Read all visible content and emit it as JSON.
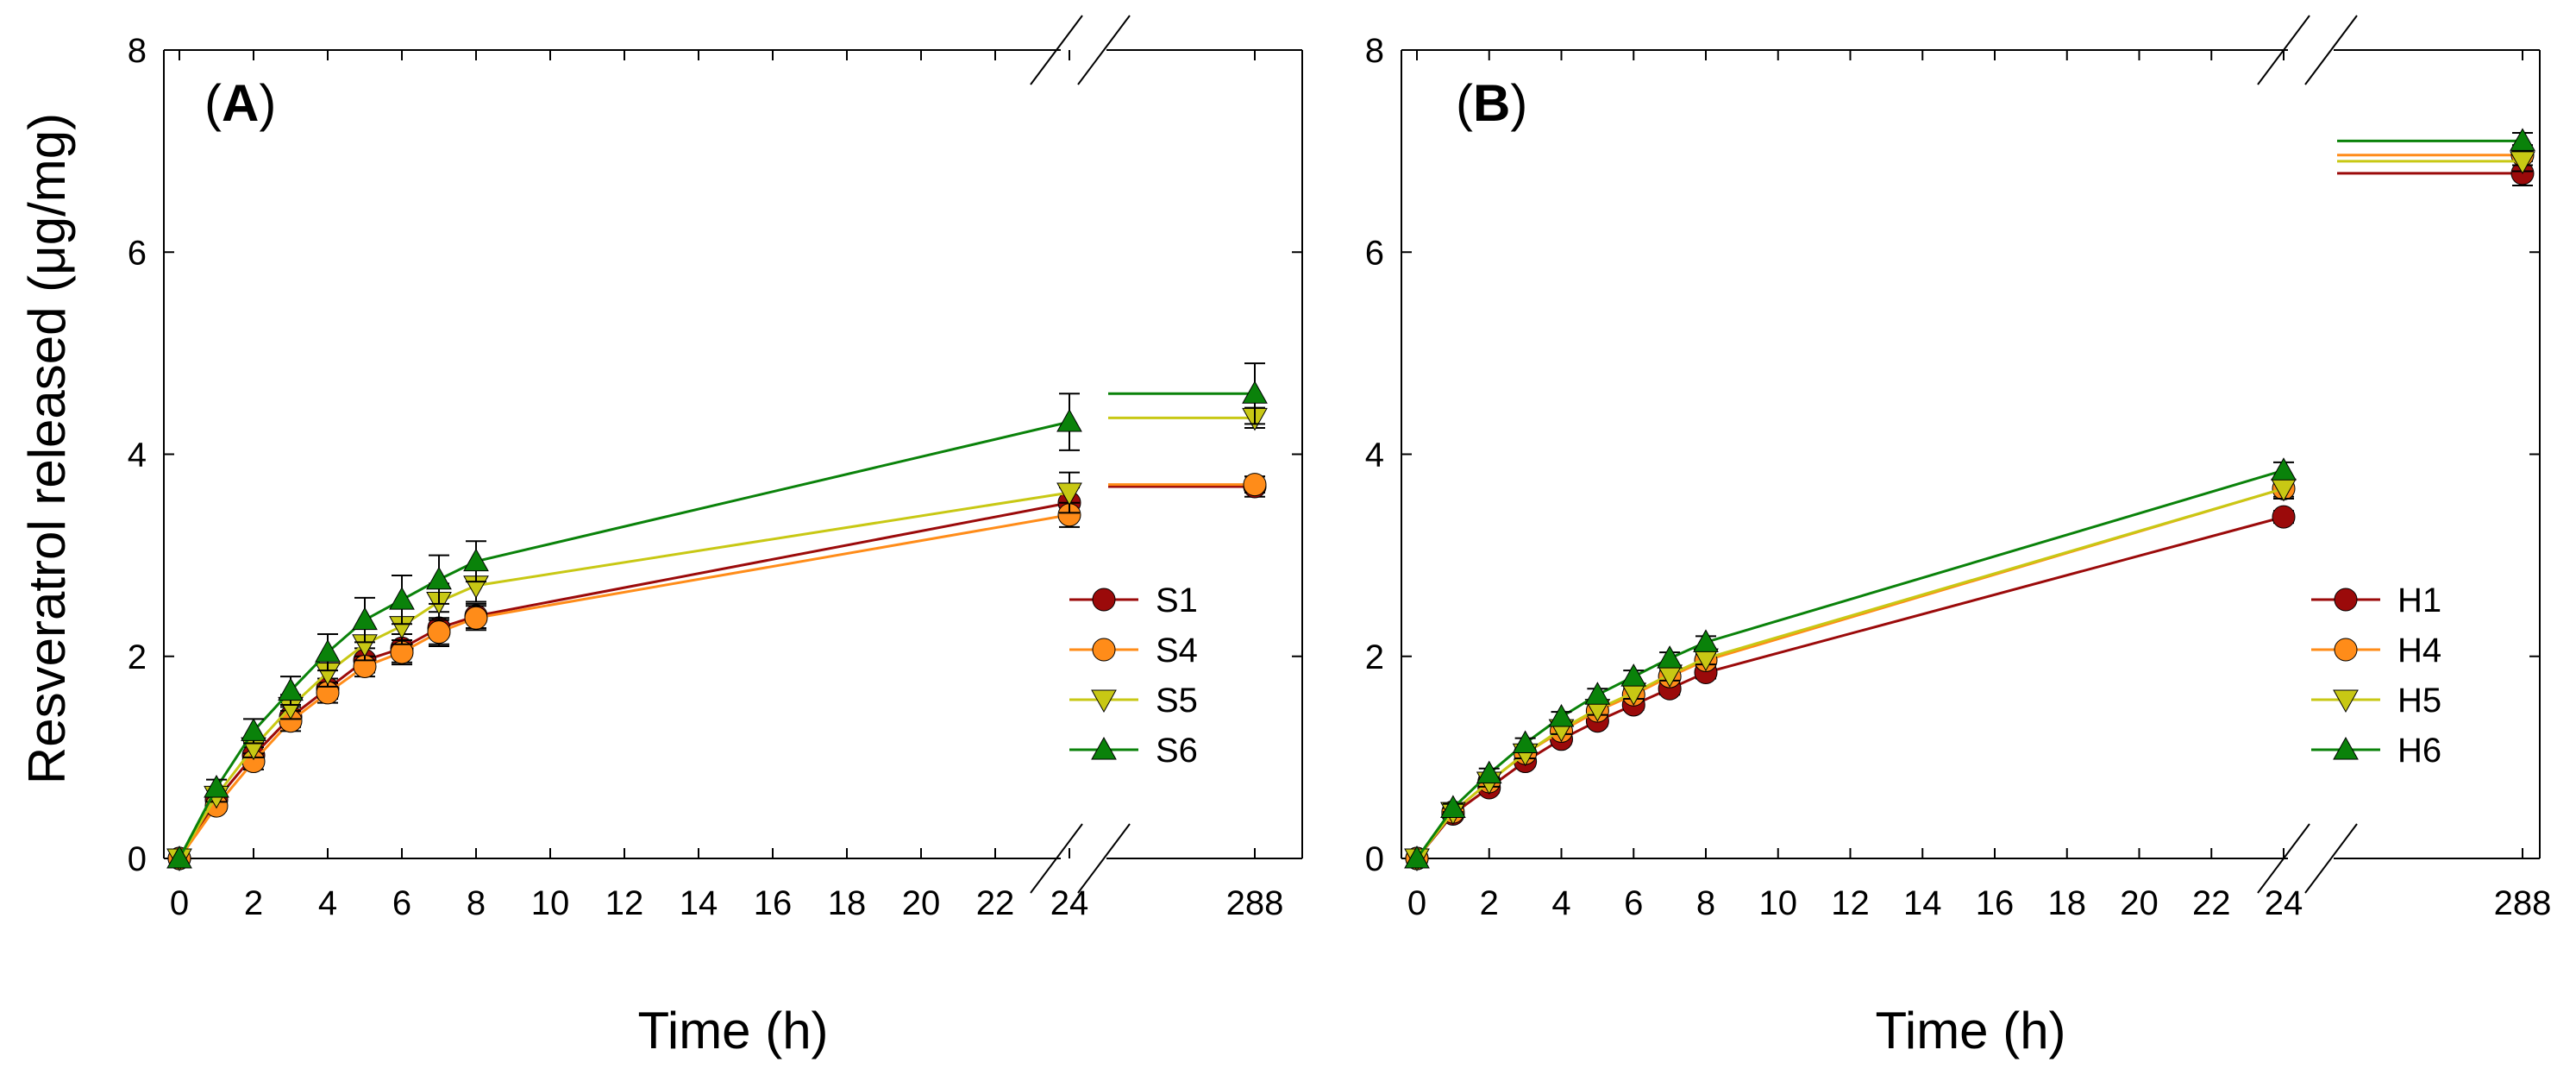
{
  "figure": {
    "y_axis_title": "Resveratrol released (μg/mg)",
    "x_axis_title": "Time (h)"
  },
  "chart_data": [
    {
      "type": "line",
      "panel_label_prefix": "(",
      "panel_label_letter": "A",
      "panel_label_suffix": ")",
      "xlabel": "Time (h)",
      "ylabel": "Resveratrol released (μg/mg)",
      "ylim": [
        0,
        8
      ],
      "yticks": [
        "0",
        "2",
        "4",
        "6",
        "8"
      ],
      "xticks": [
        "0",
        "2",
        "4",
        "6",
        "8",
        "10",
        "12",
        "14",
        "16",
        "18",
        "20",
        "22",
        "24"
      ],
      "xticks_after_break": [
        "288"
      ],
      "x": [
        0,
        1,
        2,
        3,
        4,
        5,
        6,
        7,
        8,
        24
      ],
      "x_after_break": [
        288
      ],
      "legend_position": "right",
      "series": [
        {
          "name": "S1",
          "marker": "circle",
          "color": "#9b0a0a",
          "values": [
            0,
            0.58,
            1.02,
            1.4,
            1.68,
            1.96,
            2.08,
            2.28,
            2.4,
            3.52
          ],
          "errors": [
            0,
            0.06,
            0.08,
            0.1,
            0.1,
            0.12,
            0.14,
            0.16,
            0.12,
            0.15
          ],
          "value_after_break": 3.68,
          "error_after_break": 0.1
        },
        {
          "name": "S4",
          "marker": "circle",
          "color": "#ff8c19",
          "values": [
            0,
            0.52,
            0.96,
            1.36,
            1.64,
            1.9,
            2.04,
            2.24,
            2.38,
            3.4
          ],
          "errors": [
            0,
            0.05,
            0.08,
            0.1,
            0.1,
            0.1,
            0.12,
            0.14,
            0.12,
            0.12
          ],
          "value_after_break": 3.7,
          "error_after_break": 0.08
        },
        {
          "name": "S5",
          "marker": "triangle-down",
          "color": "#c8c814",
          "values": [
            0,
            0.62,
            1.1,
            1.5,
            1.84,
            2.12,
            2.3,
            2.54,
            2.7,
            3.62
          ],
          "errors": [
            0,
            0.06,
            0.1,
            0.12,
            0.14,
            0.16,
            0.18,
            0.18,
            0.16,
            0.2
          ],
          "value_after_break": 4.36,
          "error_after_break": 0.1
        },
        {
          "name": "S6",
          "marker": "triangle-up",
          "color": "#0a820a",
          "values": [
            0,
            0.7,
            1.26,
            1.66,
            2.04,
            2.36,
            2.56,
            2.76,
            2.94,
            4.32
          ],
          "errors": [
            0,
            0.08,
            0.12,
            0.14,
            0.18,
            0.22,
            0.24,
            0.24,
            0.2,
            0.28
          ],
          "value_after_break": 4.6,
          "error_after_break": 0.3
        }
      ]
    },
    {
      "type": "line",
      "panel_label_prefix": "(",
      "panel_label_letter": "B",
      "panel_label_suffix": ")",
      "xlabel": "Time (h)",
      "ylabel": "Resveratrol released (μg/mg)",
      "ylim": [
        0,
        8
      ],
      "yticks": [
        "0",
        "2",
        "4",
        "6",
        "8"
      ],
      "xticks": [
        "0",
        "2",
        "4",
        "6",
        "8",
        "10",
        "12",
        "14",
        "16",
        "18",
        "20",
        "22",
        "24"
      ],
      "xticks_after_break": [
        "288"
      ],
      "x": [
        0,
        1,
        2,
        3,
        4,
        5,
        6,
        7,
        8,
        24
      ],
      "x_after_break": [
        288
      ],
      "legend_position": "right",
      "series": [
        {
          "name": "H1",
          "marker": "circle",
          "color": "#9b0a0a",
          "values": [
            0,
            0.44,
            0.7,
            0.96,
            1.18,
            1.36,
            1.52,
            1.68,
            1.84,
            3.38
          ],
          "errors": [
            0,
            0.04,
            0.05,
            0.05,
            0.05,
            0.05,
            0.05,
            0.06,
            0.06,
            0.06
          ],
          "value_after_break": 6.78,
          "error_after_break": 0.12
        },
        {
          "name": "H4",
          "marker": "circle",
          "color": "#ff8c19",
          "values": [
            0,
            0.46,
            0.76,
            1.04,
            1.26,
            1.46,
            1.62,
            1.8,
            1.96,
            3.66
          ],
          "errors": [
            0,
            0.04,
            0.05,
            0.05,
            0.05,
            0.05,
            0.06,
            0.06,
            0.06,
            0.08
          ],
          "value_after_break": 6.96,
          "error_after_break": 0.1
        },
        {
          "name": "H5",
          "marker": "triangle-down",
          "color": "#c8c814",
          "values": [
            0,
            0.46,
            0.76,
            1.04,
            1.28,
            1.48,
            1.64,
            1.82,
            1.98,
            3.66
          ],
          "errors": [
            0,
            0.04,
            0.05,
            0.05,
            0.05,
            0.06,
            0.06,
            0.06,
            0.06,
            0.1
          ],
          "value_after_break": 6.9,
          "error_after_break": 0.1
        },
        {
          "name": "H6",
          "marker": "triangle-up",
          "color": "#0a820a",
          "values": [
            0,
            0.5,
            0.84,
            1.14,
            1.4,
            1.62,
            1.8,
            1.98,
            2.14,
            3.84
          ],
          "errors": [
            0,
            0.04,
            0.05,
            0.05,
            0.05,
            0.06,
            0.06,
            0.06,
            0.06,
            0.08
          ],
          "value_after_break": 7.1,
          "error_after_break": 0.08
        }
      ]
    }
  ]
}
